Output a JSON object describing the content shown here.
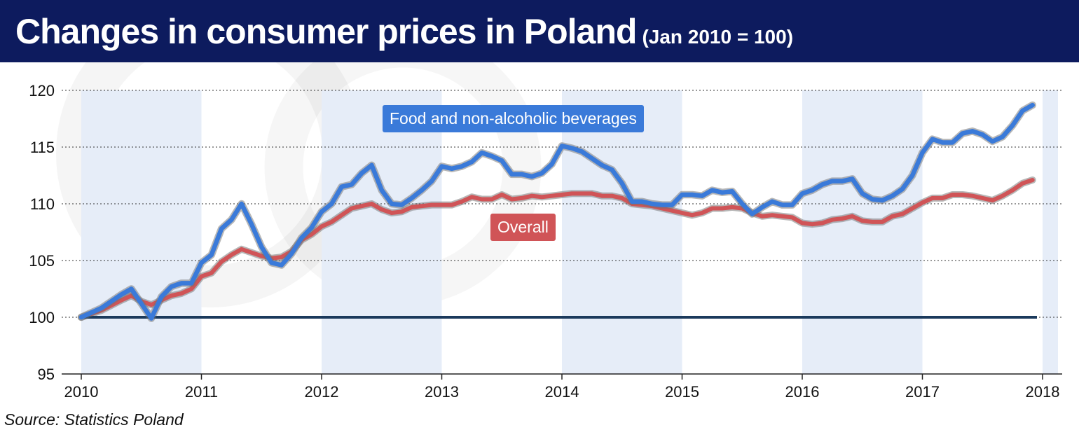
{
  "header": {
    "title": "Changes in consumer prices in Poland",
    "subtitle": "(Jan 2010 = 100)"
  },
  "source": "Source: Statistics Poland",
  "colors": {
    "header_bg": "#0d1b5e",
    "food": "#3a7ad9",
    "overall": "#d05457",
    "baseline": "#1b3a5c",
    "year_band": "#e6edf8"
  },
  "chart_data": {
    "type": "line",
    "x_range": [
      "2010-01",
      "2018-01"
    ],
    "ylim": [
      95,
      120
    ],
    "y_ticks": [
      95,
      100,
      105,
      110,
      115,
      120
    ],
    "x_ticks": [
      "2010",
      "2011",
      "2012",
      "2013",
      "2014",
      "2015",
      "2016",
      "2017",
      "2018"
    ],
    "grid": "horizontal dotted",
    "baseline": 100,
    "series": [
      {
        "name": "Food and non-alcoholic beverages",
        "color": "#3a7ad9",
        "points": [
          [
            "2010-01",
            100.0
          ],
          [
            "2010-03",
            100.8
          ],
          [
            "2010-05",
            102.0
          ],
          [
            "2010-06",
            102.5
          ],
          [
            "2010-07",
            101.2
          ],
          [
            "2010-08",
            99.9
          ],
          [
            "2010-09",
            101.8
          ],
          [
            "2010-10",
            102.7
          ],
          [
            "2010-11",
            103.0
          ],
          [
            "2010-12",
            103.0
          ],
          [
            "2011-01",
            104.8
          ],
          [
            "2011-02",
            105.5
          ],
          [
            "2011-03",
            107.8
          ],
          [
            "2011-04",
            108.6
          ],
          [
            "2011-05",
            110.0
          ],
          [
            "2011-06",
            108.2
          ],
          [
            "2011-07",
            106.2
          ],
          [
            "2011-08",
            104.8
          ],
          [
            "2011-09",
            104.6
          ],
          [
            "2011-10",
            105.6
          ],
          [
            "2011-11",
            107.0
          ],
          [
            "2011-12",
            107.9
          ],
          [
            "2012-01",
            109.3
          ],
          [
            "2012-02",
            110.0
          ],
          [
            "2012-03",
            111.5
          ],
          [
            "2012-04",
            111.7
          ],
          [
            "2012-05",
            112.7
          ],
          [
            "2012-06",
            113.4
          ],
          [
            "2012-07",
            111.2
          ],
          [
            "2012-08",
            110.0
          ],
          [
            "2012-09",
            109.9
          ],
          [
            "2012-10",
            110.5
          ],
          [
            "2012-11",
            111.2
          ],
          [
            "2012-12",
            112.0
          ],
          [
            "2013-01",
            113.3
          ],
          [
            "2013-02",
            113.1
          ],
          [
            "2013-03",
            113.3
          ],
          [
            "2013-04",
            113.7
          ],
          [
            "2013-05",
            114.5
          ],
          [
            "2013-06",
            114.2
          ],
          [
            "2013-07",
            113.8
          ],
          [
            "2013-08",
            112.6
          ],
          [
            "2013-09",
            112.6
          ],
          [
            "2013-10",
            112.4
          ],
          [
            "2013-11",
            112.7
          ],
          [
            "2013-12",
            113.5
          ],
          [
            "2014-01",
            115.1
          ],
          [
            "2014-02",
            114.9
          ],
          [
            "2014-03",
            114.6
          ],
          [
            "2014-04",
            114.0
          ],
          [
            "2014-05",
            113.4
          ],
          [
            "2014-06",
            113.0
          ],
          [
            "2014-07",
            111.8
          ],
          [
            "2014-08",
            110.2
          ],
          [
            "2014-09",
            110.2
          ],
          [
            "2014-10",
            110.0
          ],
          [
            "2014-11",
            109.9
          ],
          [
            "2014-12",
            109.9
          ],
          [
            "2015-01",
            110.8
          ],
          [
            "2015-02",
            110.8
          ],
          [
            "2015-03",
            110.7
          ],
          [
            "2015-04",
            111.2
          ],
          [
            "2015-05",
            111.0
          ],
          [
            "2015-06",
            111.1
          ],
          [
            "2015-07",
            110.0
          ],
          [
            "2015-08",
            109.1
          ],
          [
            "2015-09",
            109.7
          ],
          [
            "2015-10",
            110.2
          ],
          [
            "2015-11",
            109.9
          ],
          [
            "2015-12",
            109.9
          ],
          [
            "2016-01",
            110.9
          ],
          [
            "2016-02",
            111.2
          ],
          [
            "2016-03",
            111.7
          ],
          [
            "2016-04",
            112.0
          ],
          [
            "2016-05",
            112.0
          ],
          [
            "2016-06",
            112.2
          ],
          [
            "2016-07",
            110.9
          ],
          [
            "2016-08",
            110.4
          ],
          [
            "2016-09",
            110.3
          ],
          [
            "2016-10",
            110.7
          ],
          [
            "2016-11",
            111.3
          ],
          [
            "2016-12",
            112.5
          ],
          [
            "2017-01",
            114.5
          ],
          [
            "2017-02",
            115.7
          ],
          [
            "2017-03",
            115.4
          ],
          [
            "2017-04",
            115.4
          ],
          [
            "2017-05",
            116.2
          ],
          [
            "2017-06",
            116.4
          ],
          [
            "2017-07",
            116.1
          ],
          [
            "2017-08",
            115.5
          ],
          [
            "2017-09",
            115.9
          ],
          [
            "2017-10",
            116.9
          ],
          [
            "2017-11",
            118.2
          ],
          [
            "2017-12",
            118.7
          ]
        ]
      },
      {
        "name": "Overall",
        "color": "#d05457",
        "points": [
          [
            "2010-01",
            100.0
          ],
          [
            "2010-03",
            100.6
          ],
          [
            "2010-05",
            101.5
          ],
          [
            "2010-06",
            101.9
          ],
          [
            "2010-07",
            101.4
          ],
          [
            "2010-08",
            101.1
          ],
          [
            "2010-09",
            101.5
          ],
          [
            "2010-10",
            101.9
          ],
          [
            "2010-11",
            102.1
          ],
          [
            "2010-12",
            102.5
          ],
          [
            "2011-01",
            103.6
          ],
          [
            "2011-02",
            103.9
          ],
          [
            "2011-03",
            104.9
          ],
          [
            "2011-04",
            105.5
          ],
          [
            "2011-05",
            106.0
          ],
          [
            "2011-06",
            105.7
          ],
          [
            "2011-07",
            105.4
          ],
          [
            "2011-08",
            105.2
          ],
          [
            "2011-09",
            105.3
          ],
          [
            "2011-10",
            105.8
          ],
          [
            "2011-11",
            106.8
          ],
          [
            "2011-12",
            107.3
          ],
          [
            "2012-01",
            108.0
          ],
          [
            "2012-02",
            108.4
          ],
          [
            "2012-03",
            109.0
          ],
          [
            "2012-04",
            109.6
          ],
          [
            "2012-05",
            109.8
          ],
          [
            "2012-06",
            110.0
          ],
          [
            "2012-07",
            109.5
          ],
          [
            "2012-08",
            109.2
          ],
          [
            "2012-09",
            109.3
          ],
          [
            "2012-10",
            109.7
          ],
          [
            "2012-11",
            109.8
          ],
          [
            "2012-12",
            109.9
          ],
          [
            "2013-01",
            109.9
          ],
          [
            "2013-02",
            109.9
          ],
          [
            "2013-03",
            110.2
          ],
          [
            "2013-04",
            110.6
          ],
          [
            "2013-05",
            110.4
          ],
          [
            "2013-06",
            110.4
          ],
          [
            "2013-07",
            110.8
          ],
          [
            "2013-08",
            110.4
          ],
          [
            "2013-09",
            110.5
          ],
          [
            "2013-10",
            110.7
          ],
          [
            "2013-11",
            110.6
          ],
          [
            "2013-12",
            110.7
          ],
          [
            "2014-01",
            110.8
          ],
          [
            "2014-02",
            110.9
          ],
          [
            "2014-03",
            110.9
          ],
          [
            "2014-04",
            110.9
          ],
          [
            "2014-05",
            110.7
          ],
          [
            "2014-06",
            110.7
          ],
          [
            "2014-07",
            110.5
          ],
          [
            "2014-08",
            110.0
          ],
          [
            "2014-09",
            109.9
          ],
          [
            "2014-10",
            109.8
          ],
          [
            "2014-11",
            109.6
          ],
          [
            "2014-12",
            109.4
          ],
          [
            "2015-01",
            109.2
          ],
          [
            "2015-02",
            109.0
          ],
          [
            "2015-03",
            109.2
          ],
          [
            "2015-04",
            109.6
          ],
          [
            "2015-05",
            109.6
          ],
          [
            "2015-06",
            109.7
          ],
          [
            "2015-07",
            109.6
          ],
          [
            "2015-08",
            109.2
          ],
          [
            "2015-09",
            108.9
          ],
          [
            "2015-10",
            109.0
          ],
          [
            "2015-11",
            108.9
          ],
          [
            "2015-12",
            108.8
          ],
          [
            "2016-01",
            108.3
          ],
          [
            "2016-02",
            108.2
          ],
          [
            "2016-03",
            108.3
          ],
          [
            "2016-04",
            108.6
          ],
          [
            "2016-05",
            108.7
          ],
          [
            "2016-06",
            108.9
          ],
          [
            "2016-07",
            108.5
          ],
          [
            "2016-08",
            108.4
          ],
          [
            "2016-09",
            108.4
          ],
          [
            "2016-10",
            108.9
          ],
          [
            "2016-11",
            109.1
          ],
          [
            "2016-12",
            109.6
          ],
          [
            "2017-01",
            110.1
          ],
          [
            "2017-02",
            110.5
          ],
          [
            "2017-03",
            110.5
          ],
          [
            "2017-04",
            110.8
          ],
          [
            "2017-05",
            110.8
          ],
          [
            "2017-06",
            110.7
          ],
          [
            "2017-07",
            110.5
          ],
          [
            "2017-08",
            110.3
          ],
          [
            "2017-09",
            110.7
          ],
          [
            "2017-10",
            111.2
          ],
          [
            "2017-11",
            111.8
          ],
          [
            "2017-12",
            112.1
          ]
        ]
      }
    ]
  }
}
